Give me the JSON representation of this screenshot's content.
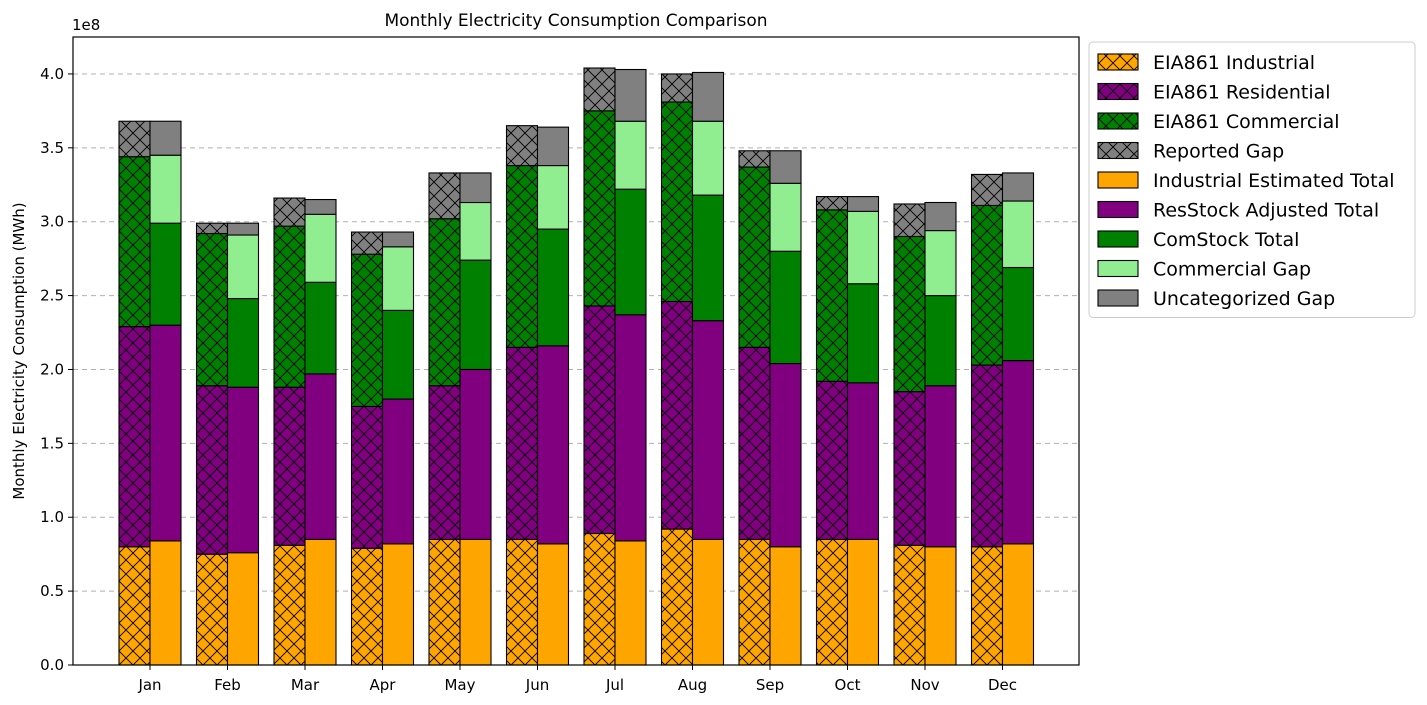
{
  "chart_data": {
    "type": "bar",
    "title": "Monthly Electricity Consumption Comparison",
    "xlabel": "",
    "ylabel": "Monthly Electricity Consumption (MWh)",
    "y_offset_label": "1e8",
    "ylim": [
      0,
      4.25
    ],
    "yticks": [
      "0.0",
      "0.5",
      "1.0",
      "1.5",
      "2.0",
      "2.5",
      "3.0",
      "3.5",
      "4.0"
    ],
    "grid": "y-dashed",
    "legend_position": "outside-right",
    "categories": [
      "Jan",
      "Feb",
      "Mar",
      "Apr",
      "May",
      "Jun",
      "Jul",
      "Aug",
      "Sep",
      "Oct",
      "Nov",
      "Dec"
    ],
    "stacks": [
      {
        "position": "left",
        "hatched": true,
        "series": [
          {
            "name": "EIA861 Industrial",
            "color": "#ffa500",
            "values": [
              0.8,
              0.75,
              0.81,
              0.79,
              0.85,
              0.85,
              0.89,
              0.92,
              0.85,
              0.85,
              0.81,
              0.8
            ]
          },
          {
            "name": "EIA861 Residential",
            "color": "#800080",
            "values": [
              1.49,
              1.14,
              1.07,
              0.96,
              1.04,
              1.3,
              1.54,
              1.54,
              1.3,
              1.07,
              1.04,
              1.23
            ]
          },
          {
            "name": "EIA861 Commercial",
            "color": "#008000",
            "values": [
              1.15,
              1.03,
              1.09,
              1.03,
              1.13,
              1.23,
              1.32,
              1.35,
              1.22,
              1.16,
              1.05,
              1.08
            ]
          },
          {
            "name": "Reported Gap",
            "color": "#808080",
            "values": [
              0.24,
              0.07,
              0.19,
              0.15,
              0.31,
              0.27,
              0.29,
              0.19,
              0.11,
              0.09,
              0.22,
              0.21
            ]
          }
        ]
      },
      {
        "position": "right",
        "hatched": false,
        "series": [
          {
            "name": "Industrial Estimated Total",
            "color": "#ffa500",
            "values": [
              0.84,
              0.76,
              0.85,
              0.82,
              0.85,
              0.82,
              0.84,
              0.85,
              0.8,
              0.85,
              0.8,
              0.82
            ]
          },
          {
            "name": "ResStock Adjusted Total",
            "color": "#800080",
            "values": [
              1.46,
              1.12,
              1.12,
              0.98,
              1.15,
              1.34,
              1.53,
              1.48,
              1.24,
              1.06,
              1.09,
              1.24
            ]
          },
          {
            "name": "ComStock Total",
            "color": "#008000",
            "values": [
              0.69,
              0.6,
              0.62,
              0.6,
              0.74,
              0.79,
              0.85,
              0.85,
              0.76,
              0.67,
              0.61,
              0.63
            ]
          },
          {
            "name": "Commercial Gap",
            "color": "#90ee90",
            "values": [
              0.46,
              0.43,
              0.46,
              0.43,
              0.39,
              0.43,
              0.46,
              0.5,
              0.46,
              0.49,
              0.44,
              0.45
            ]
          },
          {
            "name": "Uncategorized Gap",
            "color": "#808080",
            "values": [
              0.23,
              0.08,
              0.1,
              0.1,
              0.2,
              0.26,
              0.35,
              0.33,
              0.22,
              0.1,
              0.19,
              0.19
            ]
          }
        ]
      }
    ],
    "legend": [
      {
        "label": "EIA861 Industrial",
        "color": "#ffa500",
        "hatched": true
      },
      {
        "label": "EIA861 Residential",
        "color": "#800080",
        "hatched": true
      },
      {
        "label": "EIA861 Commercial",
        "color": "#008000",
        "hatched": true
      },
      {
        "label": "Reported Gap",
        "color": "#808080",
        "hatched": true
      },
      {
        "label": "Industrial Estimated Total",
        "color": "#ffa500",
        "hatched": false
      },
      {
        "label": "ResStock Adjusted Total",
        "color": "#800080",
        "hatched": false
      },
      {
        "label": "ComStock Total",
        "color": "#008000",
        "hatched": false
      },
      {
        "label": "Commercial Gap",
        "color": "#90ee90",
        "hatched": false
      },
      {
        "label": "Uncategorized Gap",
        "color": "#808080",
        "hatched": false
      }
    ]
  }
}
